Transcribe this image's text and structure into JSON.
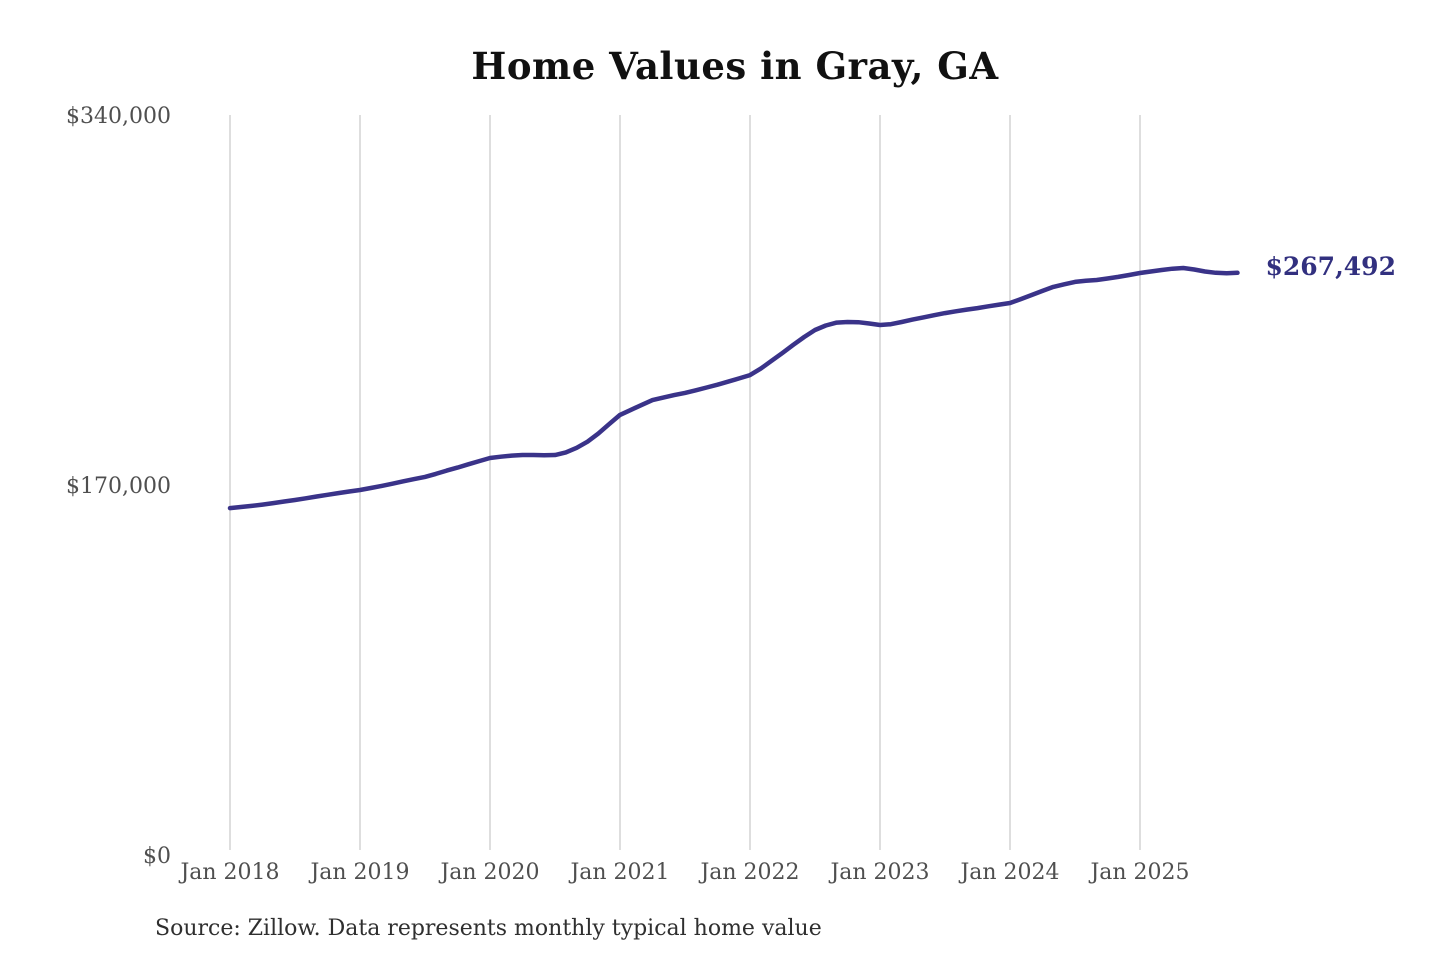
{
  "title": "Home Values in Gray, GA",
  "source_note": "Source: Zillow. Data represents monthly typical home value",
  "end_label": "$267,492",
  "colors": {
    "line": "#3a3389",
    "end_label": "#32307f",
    "gridline": "#cccccc",
    "tick_text": "#4f4f4f",
    "title_text": "#111111",
    "source_text": "#2f2f2f",
    "background": "#ffffff"
  },
  "chart_data": {
    "type": "line",
    "title": "Home Values in Gray, GA",
    "series_name": "Monthly typical home value (Zillow)",
    "start_month": "2018-01",
    "interval": "monthly",
    "end_month": "2025-10",
    "values": [
      159400,
      159900,
      160400,
      161000,
      161700,
      162400,
      163100,
      163900,
      164700,
      165500,
      166300,
      167000,
      167700,
      168600,
      169600,
      170600,
      171700,
      172700,
      173700,
      175100,
      176600,
      178000,
      179500,
      181000,
      182400,
      183000,
      183500,
      183800,
      183800,
      183700,
      183800,
      185000,
      187100,
      189900,
      193600,
      198000,
      202200,
      204500,
      206800,
      209000,
      210200,
      211300,
      212300,
      213500,
      214800,
      216100,
      217500,
      219000,
      220500,
      223500,
      227100,
      230700,
      234400,
      238000,
      241200,
      243300,
      244600,
      244900,
      244800,
      244200,
      243500,
      243900,
      244900,
      246000,
      247000,
      248000,
      249000,
      249800,
      250600,
      251300,
      252100,
      252900,
      253600,
      255400,
      257300,
      259200,
      261000,
      262200,
      263300,
      263800,
      264200,
      264900,
      265600,
      266500,
      267400,
      268100,
      268800,
      269400,
      269700,
      269000,
      268100,
      267500,
      267300,
      267492
    ],
    "final_value": 267492,
    "final_value_label": "$267,492",
    "x_tick_labels": [
      "Jan 2018",
      "Jan 2019",
      "Jan 2020",
      "Jan 2021",
      "Jan 2022",
      "Jan 2023",
      "Jan 2024",
      "Jan 2025"
    ],
    "x_tick_month_indices": [
      0,
      12,
      24,
      36,
      48,
      60,
      72,
      84
    ],
    "y_tick_labels": [
      "$0",
      "$170,000",
      "$340,000"
    ],
    "y_tick_values": [
      0,
      170000,
      340000
    ],
    "ylim": [
      0,
      340000
    ],
    "grid": "vertical-only",
    "legend": "none",
    "xlabel": "",
    "ylabel": ""
  }
}
